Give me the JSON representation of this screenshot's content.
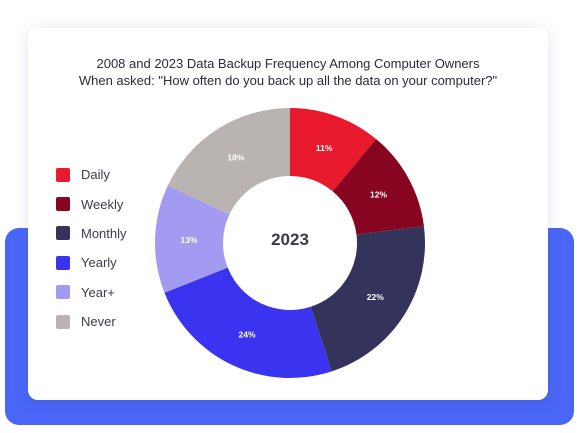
{
  "chart_data": {
    "type": "pie",
    "donut": true,
    "title_lines": [
      "2008 and 2023 Data Backup Frequency Among Computer Owners",
      "When asked: \"How often do you back up all the data on your computer?\""
    ],
    "center_label": "2023",
    "legend_position": "left",
    "slices": [
      {
        "name": "Daily",
        "value": 11,
        "label": "11%",
        "color": "#e8192c"
      },
      {
        "name": "Weekly",
        "value": 12,
        "label": "12%",
        "color": "#870521"
      },
      {
        "name": "Monthly",
        "value": 22,
        "label": "22%",
        "color": "#33335c"
      },
      {
        "name": "Yearly",
        "value": 24,
        "label": "24%",
        "color": "#3a33f0"
      },
      {
        "name": "Year+",
        "value": 13,
        "label": "13%",
        "color": "#a39af2"
      },
      {
        "name": "Never",
        "value": 18,
        "label": "18%",
        "color": "#b9b4b1"
      }
    ]
  }
}
